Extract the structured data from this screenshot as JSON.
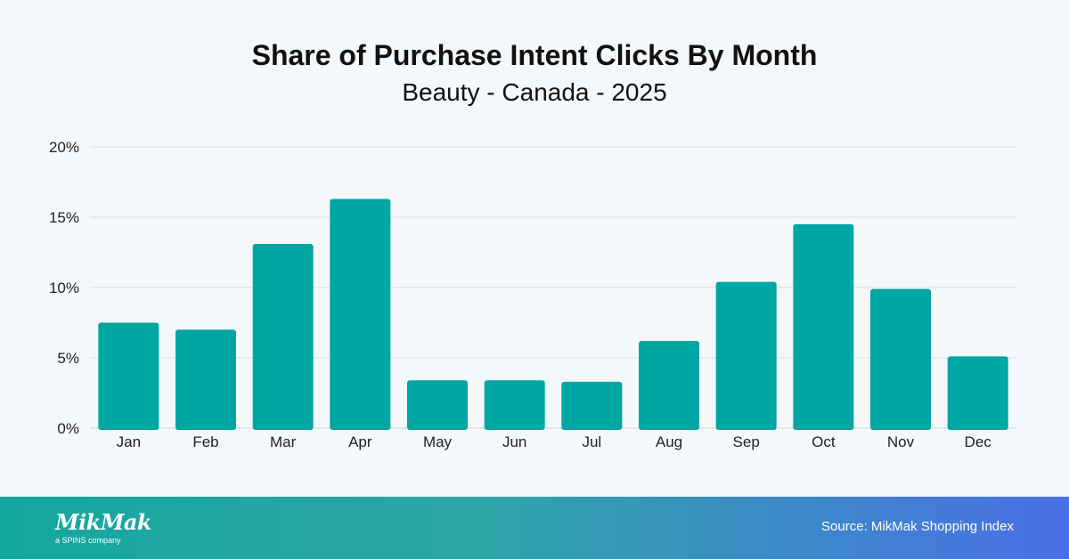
{
  "chart_data": {
    "type": "bar",
    "title": "Share of Purchase Intent Clicks By Month",
    "subtitle": "Beauty - Canada - 2025",
    "categories": [
      "Jan",
      "Feb",
      "Mar",
      "Apr",
      "May",
      "Jun",
      "Jul",
      "Aug",
      "Sep",
      "Oct",
      "Nov",
      "Dec"
    ],
    "values": [
      7.5,
      7.0,
      13.1,
      16.3,
      3.4,
      3.4,
      3.3,
      6.2,
      10.4,
      14.5,
      9.9,
      5.1
    ],
    "ylim": [
      0,
      20
    ],
    "yticks": [
      0,
      5,
      10,
      15,
      20
    ],
    "ytick_labels": [
      "0%",
      "5%",
      "10%",
      "15%",
      "20%"
    ],
    "xlabel": "",
    "ylabel": "",
    "grid": true,
    "bar_color": "#00a6a2"
  },
  "footer": {
    "logo_text": "MikMak",
    "logo_tagline": "a SPINS company",
    "source": "Source: MikMak Shopping Index"
  }
}
